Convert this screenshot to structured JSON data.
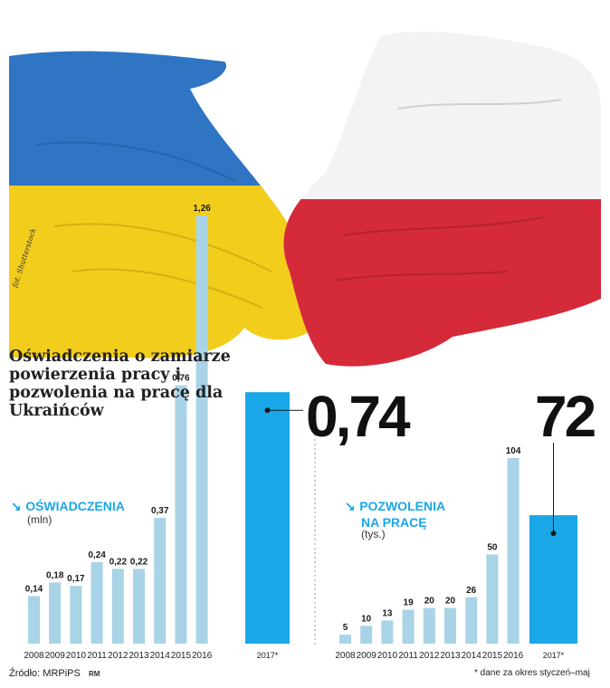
{
  "title": "Oświadczenia o zamiarze powierzenia pracy i pozwolenia na pracę dla Ukraińców",
  "photo_credit": "fot. Shutterstock",
  "source": "Źródło: MRPiPS",
  "rm": "RM",
  "footnote": "* dane za okres styczeń–maj",
  "colors": {
    "light_bar": "#a9d3e6",
    "highlight_bar": "#1aa7e8",
    "ukraine_blue": "#2f75c4",
    "ukraine_yellow": "#f2cd1c",
    "poland_red": "#d42a3a"
  },
  "chart_data": [
    {
      "type": "bar",
      "title": "OŚWIADCZENIA",
      "ylabel": "(mln)",
      "categories": [
        "2008",
        "2009",
        "2010",
        "2011",
        "2012",
        "2013",
        "2014",
        "2015",
        "2016",
        "2017*"
      ],
      "values": [
        0.14,
        0.18,
        0.17,
        0.24,
        0.22,
        0.22,
        0.37,
        0.76,
        1.26,
        0.74
      ],
      "value_labels": [
        "0,14",
        "0,18",
        "0,17",
        "0,24",
        "0,22",
        "0,22",
        "0,37",
        "0,76",
        "1,26",
        ""
      ],
      "highlight_index": 9,
      "highlight_label": "0,74",
      "ylim": [
        0,
        1.26
      ]
    },
    {
      "type": "bar",
      "title": "POZWOLENIA NA PRACĘ",
      "title_lines": [
        "POZWOLENIA",
        "NA PRACĘ"
      ],
      "ylabel": "(tys.)",
      "categories": [
        "2008",
        "2009",
        "2010",
        "2011",
        "2012",
        "2013",
        "2014",
        "2015",
        "2016",
        "2017*"
      ],
      "values": [
        5,
        10,
        13,
        19,
        20,
        20,
        26,
        50,
        104,
        72
      ],
      "value_labels": [
        "5",
        "10",
        "13",
        "19",
        "20",
        "20",
        "26",
        "50",
        "104",
        ""
      ],
      "highlight_index": 9,
      "highlight_label": "72",
      "ylim": [
        0,
        104
      ]
    }
  ]
}
